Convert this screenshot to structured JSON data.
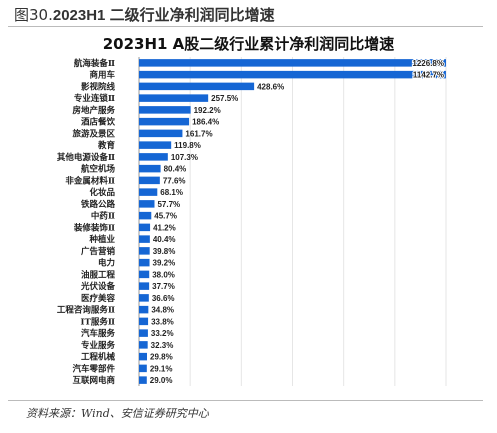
{
  "header": {
    "figure_title_prefix": "图30.",
    "figure_title_main": "2023H1 二级行业净利润同比增速"
  },
  "source": "资料来源：Wind、安信证券研究中心",
  "colors": {
    "bar": "#1566d4",
    "grid": "#e6e6e6",
    "text": "#222222"
  },
  "chart_data": {
    "type": "bar",
    "orientation": "horizontal",
    "title": "2023H1 A股二级行业累计净利润同比增速",
    "xlabel": "",
    "ylabel": "",
    "value_suffix": "%",
    "xlim": [
      0,
      1143
    ],
    "grid": true,
    "categories": [
      "航海装备Ⅱ",
      "商用车",
      "影视院线",
      "专业连锁Ⅱ",
      "房地产服务",
      "酒店餐饮",
      "旅游及景区",
      "教育",
      "其他电源设备Ⅱ",
      "航空机场",
      "非金属材料Ⅱ",
      "化妆品",
      "铁路公路",
      "中药Ⅱ",
      "装修装饰Ⅱ",
      "种植业",
      "广告营销",
      "电力",
      "油服工程",
      "光伏设备",
      "医疗美容",
      "工程咨询服务Ⅱ",
      "IT服务Ⅱ",
      "汽车服务",
      "专业服务",
      "工程机械",
      "汽车零部件",
      "互联网电商"
    ],
    "value_labels": [
      "1226.8%",
      "1142.7%",
      "428.6%",
      "257.5%",
      "192.2%",
      "186.4%",
      "161.7%",
      "119.8%",
      "107.3%",
      "80.4%",
      "77.6%",
      "68.1%",
      "57.7%",
      "45.7%",
      "41.2%",
      "40.4%",
      "39.8%",
      "39.2%",
      "38.0%",
      "37.7%",
      "36.6%",
      "34.8%",
      "33.8%",
      "33.2%",
      "32.3%",
      "29.8%",
      "29.1%",
      "29.0%"
    ],
    "values": [
      1226.8,
      1142.7,
      428.6,
      257.5,
      192.2,
      186.4,
      161.7,
      119.8,
      107.3,
      80.4,
      77.6,
      68.1,
      57.7,
      45.7,
      41.2,
      40.4,
      39.8,
      39.2,
      38.0,
      37.7,
      36.6,
      34.8,
      33.8,
      33.2,
      32.3,
      29.8,
      29.1,
      29.0
    ]
  }
}
